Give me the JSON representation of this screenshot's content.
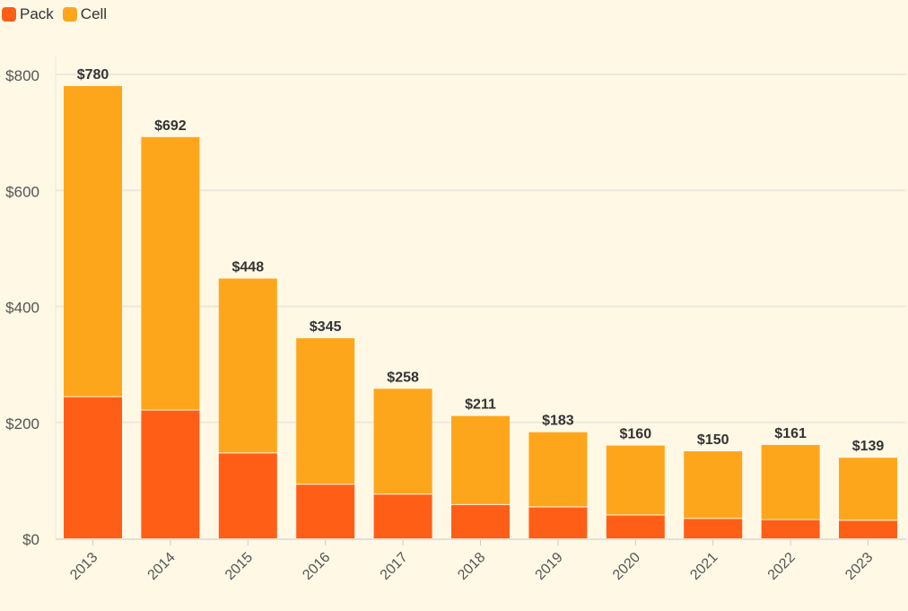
{
  "chart_data": {
    "type": "bar",
    "stacked": true,
    "categories": [
      "2013",
      "2014",
      "2015",
      "2016",
      "2017",
      "2018",
      "2019",
      "2020",
      "2021",
      "2022",
      "2023"
    ],
    "series": [
      {
        "name": "Pack",
        "color": "#ff5e17",
        "values": [
          245,
          222,
          148,
          94,
          77,
          59,
          55,
          41,
          35,
          33,
          32
        ]
      },
      {
        "name": "Cell",
        "color": "#fea61b",
        "values": [
          535,
          470,
          300,
          251,
          181,
          152,
          128,
          119,
          115,
          128,
          107
        ]
      }
    ],
    "totals": [
      780,
      692,
      448,
      345,
      258,
      211,
      183,
      160,
      150,
      161,
      139
    ],
    "total_labels": [
      "$780",
      "$692",
      "$448",
      "$345",
      "$258",
      "$211",
      "$183",
      "$160",
      "$150",
      "$161",
      "$139"
    ],
    "ylim": [
      0,
      800
    ],
    "yticks": [
      0,
      200,
      400,
      600,
      800
    ],
    "ytick_labels": [
      "$0",
      "$200",
      "$400",
      "$600",
      "$800"
    ],
    "grid": true,
    "legend_position": "top-left"
  }
}
